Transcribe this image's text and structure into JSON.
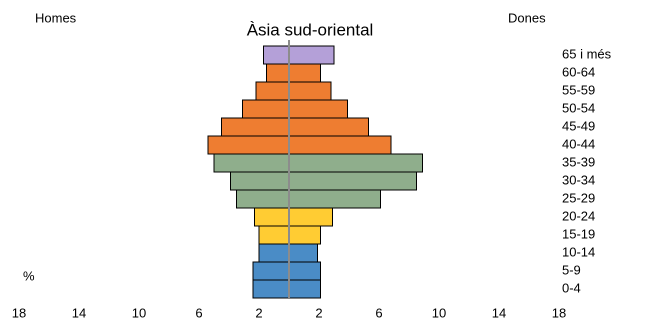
{
  "chart_data": {
    "type": "pyramid",
    "title": "Àsia sud-oriental",
    "categories": [
      "0-4",
      "5-9",
      "10-14",
      "15-19",
      "20-24",
      "25-29",
      "30-34",
      "35-39",
      "40-44",
      "45-49",
      "50-54",
      "55-59",
      "60-64",
      "65 i més"
    ],
    "colors": [
      "#4a8cc6",
      "#4a8cc6",
      "#4a8cc6",
      "#ffcc33",
      "#ffcc33",
      "#8fae8c",
      "#8fae8c",
      "#8fae8c",
      "#ee7d31",
      "#ee7d31",
      "#ee7d31",
      "#ee7d31",
      "#ee7d31",
      "#b4a0d8"
    ],
    "series": [
      {
        "name": "Homes",
        "values": [
          -2.4,
          -2.4,
          -2.0,
          -2.0,
          -2.3,
          -3.5,
          -3.9,
          -5.0,
          -5.4,
          -4.5,
          -3.1,
          -2.2,
          -1.5,
          -1.7
        ]
      },
      {
        "name": "Dones",
        "values": [
          2.1,
          2.1,
          1.9,
          2.1,
          2.9,
          6.1,
          8.5,
          8.9,
          6.8,
          5.3,
          3.9,
          2.8,
          2.1,
          3.0
        ]
      }
    ],
    "xlim": [
      -18,
      18
    ],
    "xticks": [
      {
        "value": -18,
        "label": "18"
      },
      {
        "value": -14,
        "label": "14"
      },
      {
        "value": -10,
        "label": "10"
      },
      {
        "value": -6,
        "label": "6"
      },
      {
        "value": -2,
        "label": "2"
      },
      {
        "value": 2,
        "label": "2"
      },
      {
        "value": 6,
        "label": "6"
      },
      {
        "value": 10,
        "label": "10"
      },
      {
        "value": 14,
        "label": "14"
      },
      {
        "value": 18,
        "label": "18"
      }
    ],
    "unit_label": "%"
  }
}
